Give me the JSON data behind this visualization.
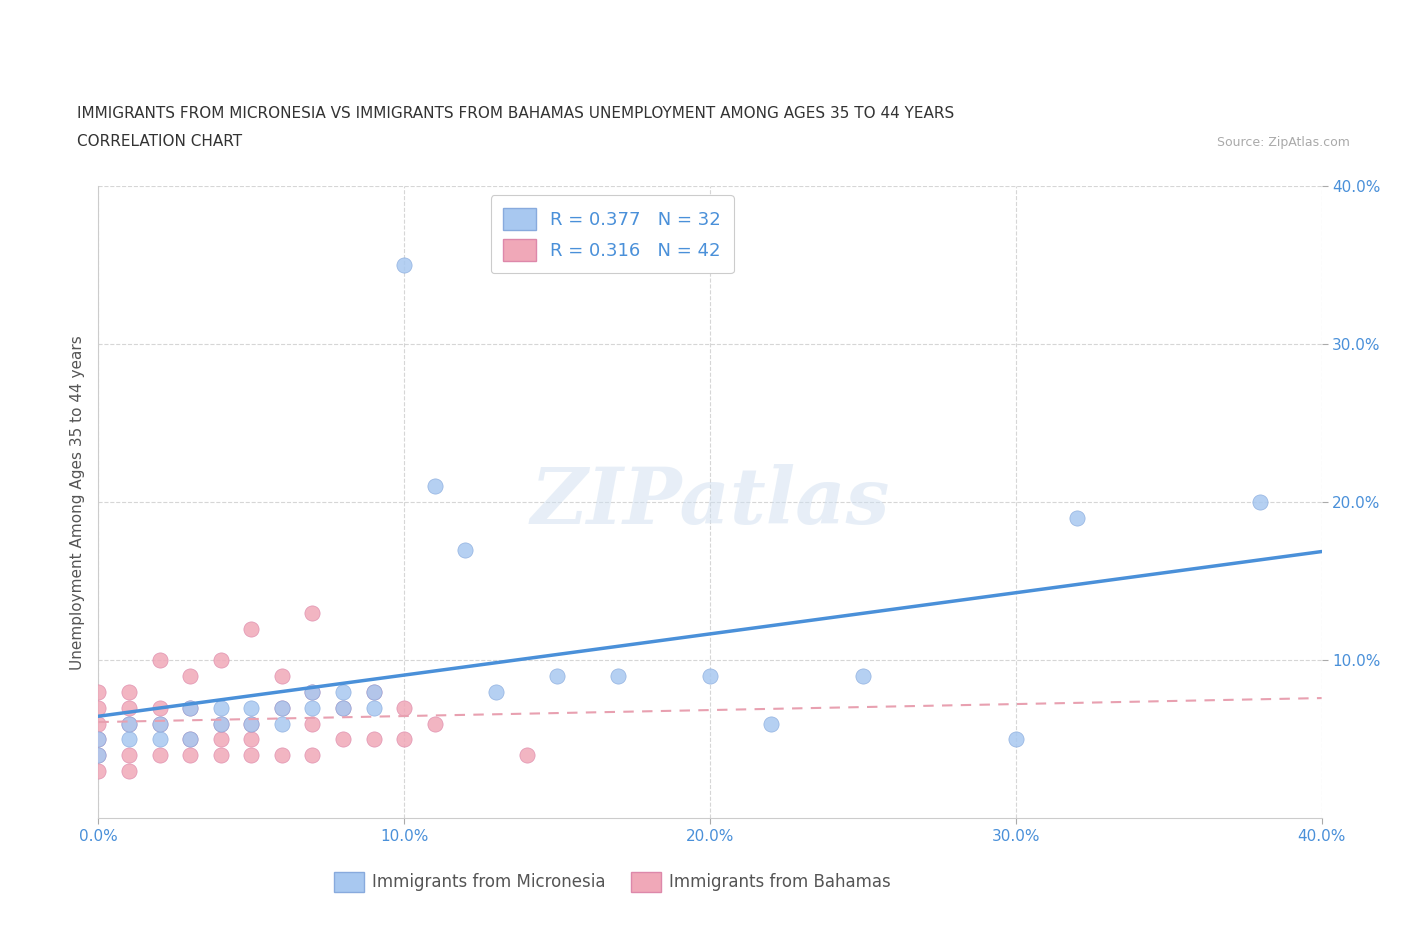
{
  "title_line1": "IMMIGRANTS FROM MICRONESIA VS IMMIGRANTS FROM BAHAMAS UNEMPLOYMENT AMONG AGES 35 TO 44 YEARS",
  "title_line2": "CORRELATION CHART",
  "source_text": "Source: ZipAtlas.com",
  "ylabel": "Unemployment Among Ages 35 to 44 years",
  "xlim": [
    0.0,
    0.4
  ],
  "ylim": [
    0.0,
    0.4
  ],
  "xtick_values": [
    0.0,
    0.1,
    0.2,
    0.3,
    0.4
  ],
  "ytick_values": [
    0.1,
    0.2,
    0.3,
    0.4
  ],
  "micronesia_color": "#a8c8f0",
  "bahamas_color": "#f0a8b8",
  "micronesia_line_color": "#4a90d9",
  "bahamas_line_color": "#e8a0b0",
  "micronesia_R": 0.377,
  "micronesia_N": 32,
  "bahamas_R": 0.316,
  "bahamas_N": 42,
  "micronesia_scatter_x": [
    0.0,
    0.0,
    0.01,
    0.01,
    0.02,
    0.02,
    0.03,
    0.03,
    0.04,
    0.04,
    0.05,
    0.05,
    0.06,
    0.06,
    0.07,
    0.07,
    0.08,
    0.08,
    0.09,
    0.09,
    0.1,
    0.11,
    0.12,
    0.13,
    0.15,
    0.17,
    0.2,
    0.22,
    0.25,
    0.3,
    0.32,
    0.38
  ],
  "micronesia_scatter_y": [
    0.04,
    0.05,
    0.05,
    0.06,
    0.05,
    0.06,
    0.05,
    0.07,
    0.06,
    0.07,
    0.06,
    0.07,
    0.06,
    0.07,
    0.07,
    0.08,
    0.07,
    0.08,
    0.07,
    0.08,
    0.35,
    0.21,
    0.17,
    0.08,
    0.09,
    0.09,
    0.09,
    0.06,
    0.09,
    0.05,
    0.19,
    0.2
  ],
  "bahamas_scatter_x": [
    0.0,
    0.0,
    0.0,
    0.0,
    0.0,
    0.0,
    0.01,
    0.01,
    0.01,
    0.01,
    0.01,
    0.02,
    0.02,
    0.02,
    0.02,
    0.03,
    0.03,
    0.03,
    0.03,
    0.04,
    0.04,
    0.04,
    0.04,
    0.05,
    0.05,
    0.05,
    0.05,
    0.06,
    0.06,
    0.06,
    0.07,
    0.07,
    0.07,
    0.07,
    0.08,
    0.08,
    0.09,
    0.09,
    0.1,
    0.1,
    0.11,
    0.14
  ],
  "bahamas_scatter_y": [
    0.03,
    0.04,
    0.05,
    0.06,
    0.07,
    0.08,
    0.03,
    0.04,
    0.06,
    0.07,
    0.08,
    0.04,
    0.06,
    0.07,
    0.1,
    0.04,
    0.05,
    0.07,
    0.09,
    0.04,
    0.05,
    0.06,
    0.1,
    0.04,
    0.05,
    0.06,
    0.12,
    0.04,
    0.07,
    0.09,
    0.04,
    0.06,
    0.08,
    0.13,
    0.05,
    0.07,
    0.05,
    0.08,
    0.05,
    0.07,
    0.06,
    0.04
  ],
  "watermark_text": "ZIPatlas",
  "background_color": "#ffffff",
  "grid_color": "#cccccc",
  "tick_label_color": "#4a90d9",
  "ylabel_color": "#555555"
}
